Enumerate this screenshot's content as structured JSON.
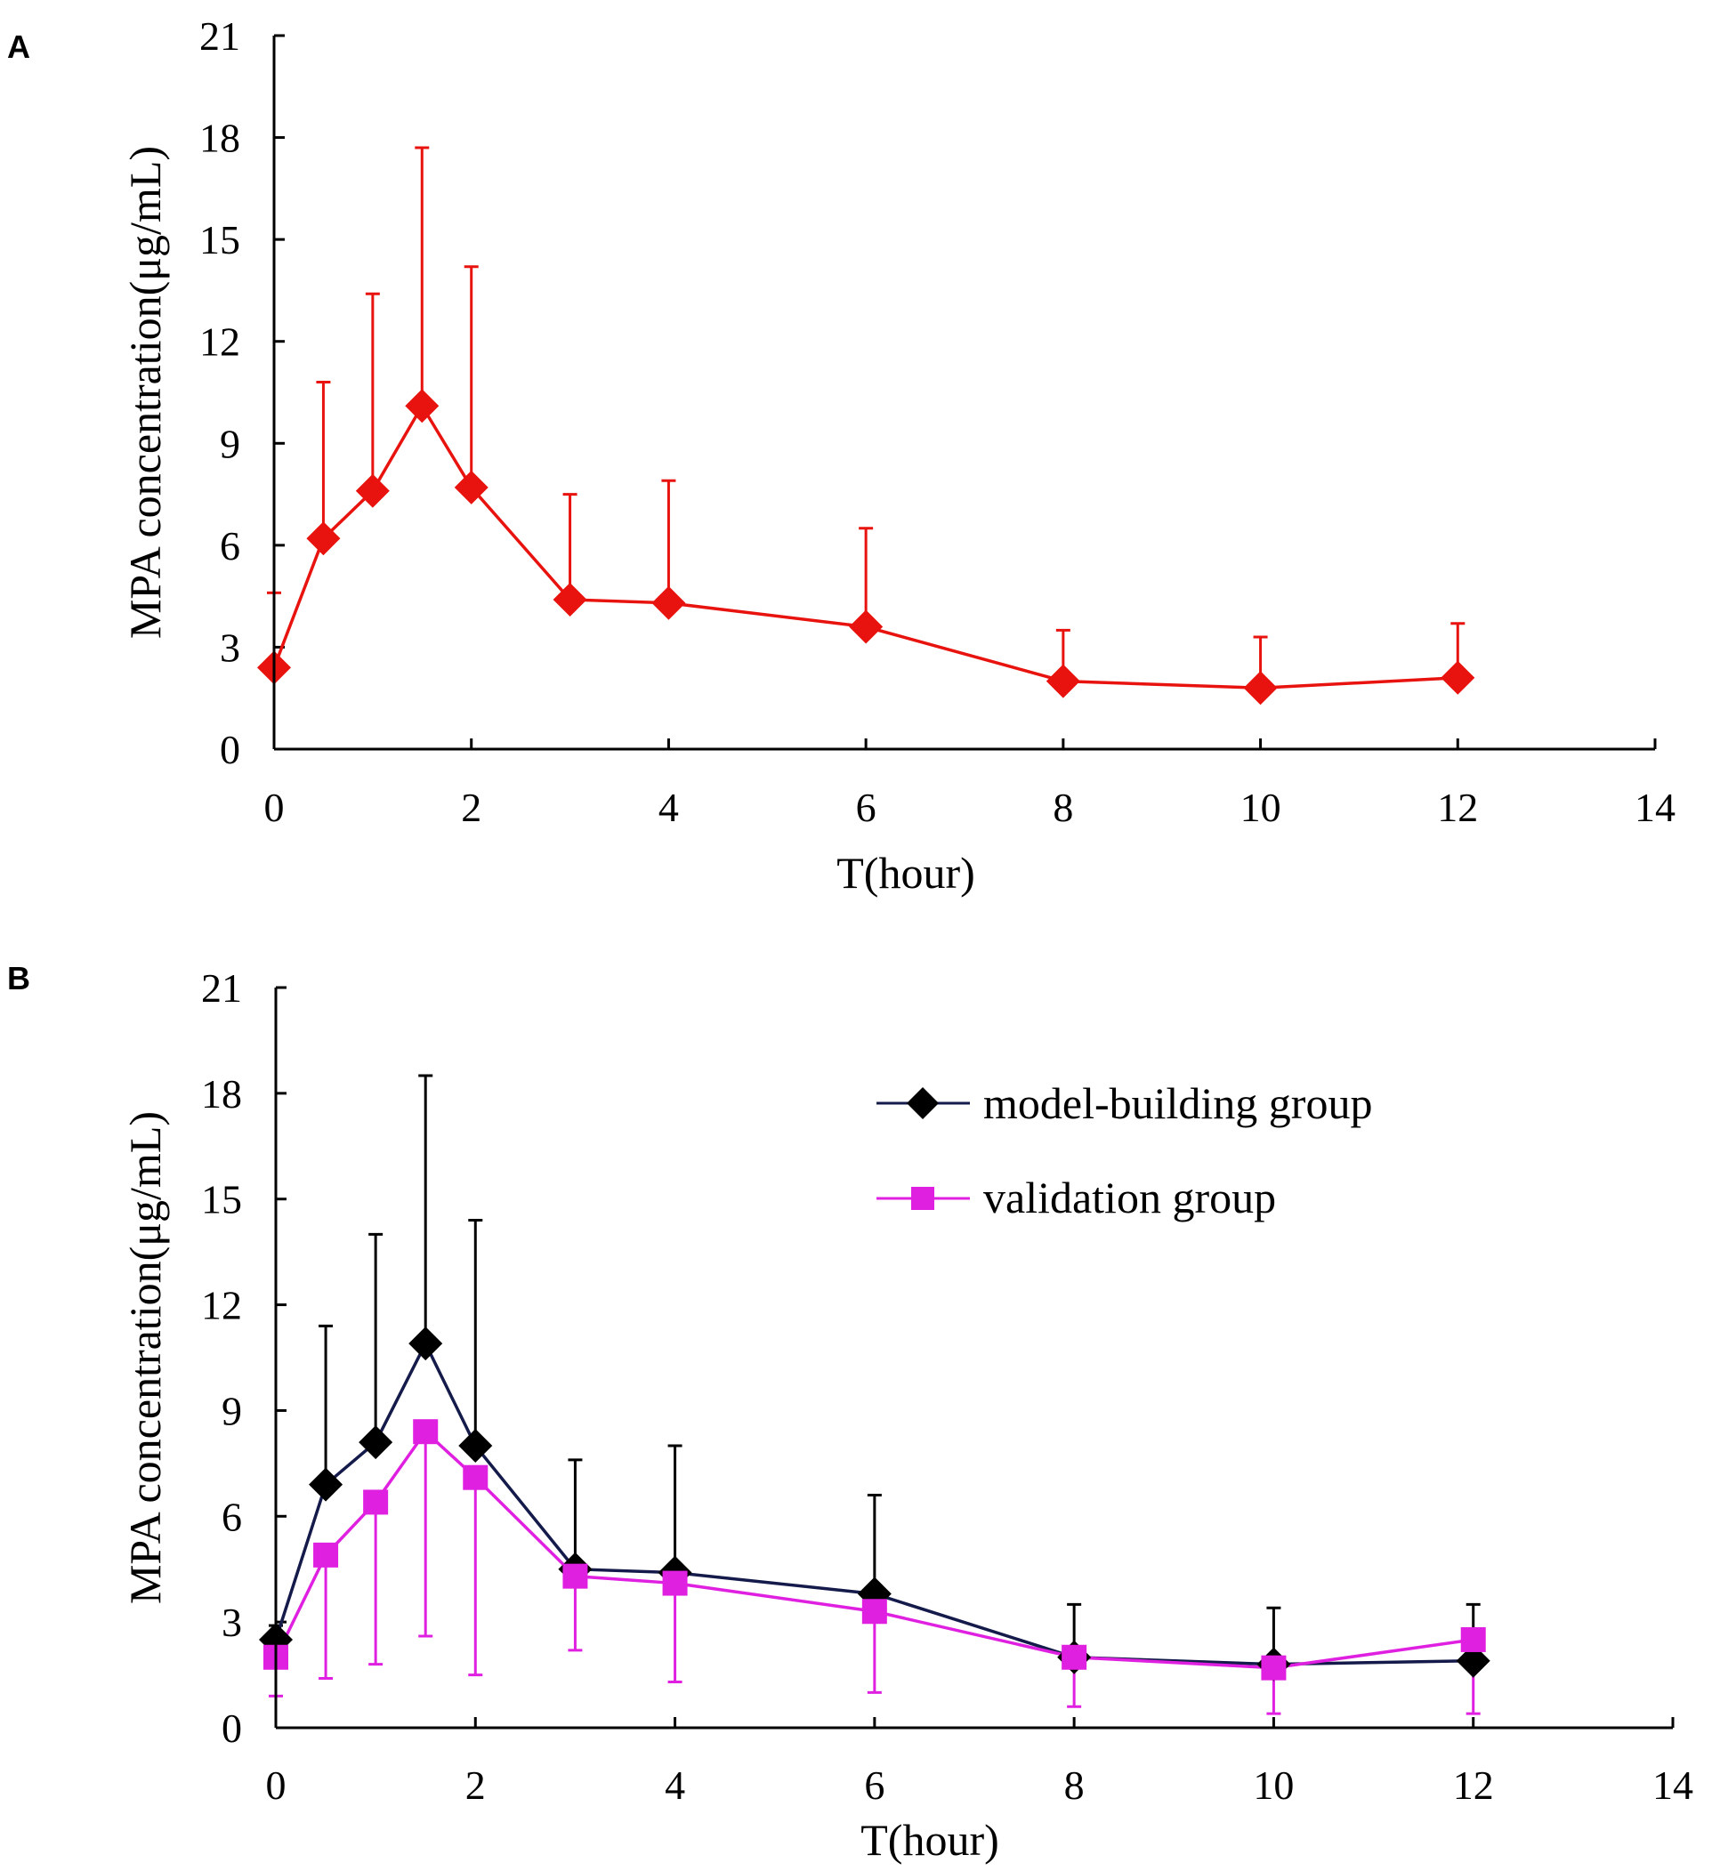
{
  "chart_data": [
    {
      "panel": "A",
      "type": "line",
      "xlabel": "T(hour)",
      "ylabel": "MPA concentration(μg/mL)",
      "xlim": [
        0,
        14
      ],
      "ylim": [
        0,
        21
      ],
      "xticks": [
        0,
        2,
        4,
        6,
        8,
        10,
        12,
        14
      ],
      "yticks": [
        0,
        3,
        6,
        9,
        12,
        15,
        18,
        21
      ],
      "grid": false,
      "series": [
        {
          "name": "",
          "color": "#e8130e",
          "marker": "diamond",
          "error_direction": "up",
          "x": [
            0,
            0.5,
            1,
            1.5,
            2,
            3,
            4,
            6,
            8,
            10,
            12
          ],
          "y": [
            2.4,
            6.2,
            7.6,
            10.1,
            7.7,
            4.4,
            4.3,
            3.6,
            2.0,
            1.8,
            2.1
          ],
          "error": [
            2.2,
            4.6,
            5.8,
            7.6,
            6.5,
            3.1,
            3.6,
            2.9,
            1.5,
            1.5,
            1.6
          ]
        }
      ]
    },
    {
      "panel": "B",
      "type": "line",
      "xlabel": "T(hour)",
      "ylabel": "MPA concentration(μg/mL)",
      "xlim": [
        0,
        14
      ],
      "ylim": [
        0,
        21
      ],
      "xticks": [
        0,
        2,
        4,
        6,
        8,
        10,
        12,
        14
      ],
      "yticks": [
        0,
        3,
        6,
        9,
        12,
        15,
        18,
        21
      ],
      "grid": false,
      "legend_position": "top-right",
      "series": [
        {
          "name": "model-building group",
          "color": "#000000",
          "line_color": "#141a4a",
          "marker": "diamond",
          "error_direction": "up",
          "x": [
            0,
            0.5,
            1,
            1.5,
            2,
            3,
            4,
            6,
            8,
            10,
            12
          ],
          "y": [
            2.5,
            6.9,
            8.1,
            10.9,
            8.0,
            4.5,
            4.4,
            3.8,
            2.0,
            1.8,
            1.9
          ],
          "error": [
            0.4,
            4.5,
            5.9,
            7.6,
            6.4,
            3.1,
            3.6,
            2.8,
            1.5,
            1.6,
            1.6
          ]
        },
        {
          "name": "validation group",
          "color": "#e020e0",
          "line_color": "#e020e0",
          "marker": "square",
          "error_direction": "down",
          "x": [
            0,
            0.5,
            1,
            1.5,
            2,
            3,
            4,
            6,
            8,
            10,
            12
          ],
          "y": [
            2.0,
            4.9,
            6.4,
            8.4,
            7.1,
            4.3,
            4.1,
            3.3,
            2.0,
            1.7,
            2.5
          ],
          "error": [
            1.1,
            3.5,
            4.6,
            5.8,
            5.6,
            2.1,
            2.8,
            2.3,
            1.4,
            1.3,
            2.1
          ]
        }
      ]
    }
  ]
}
